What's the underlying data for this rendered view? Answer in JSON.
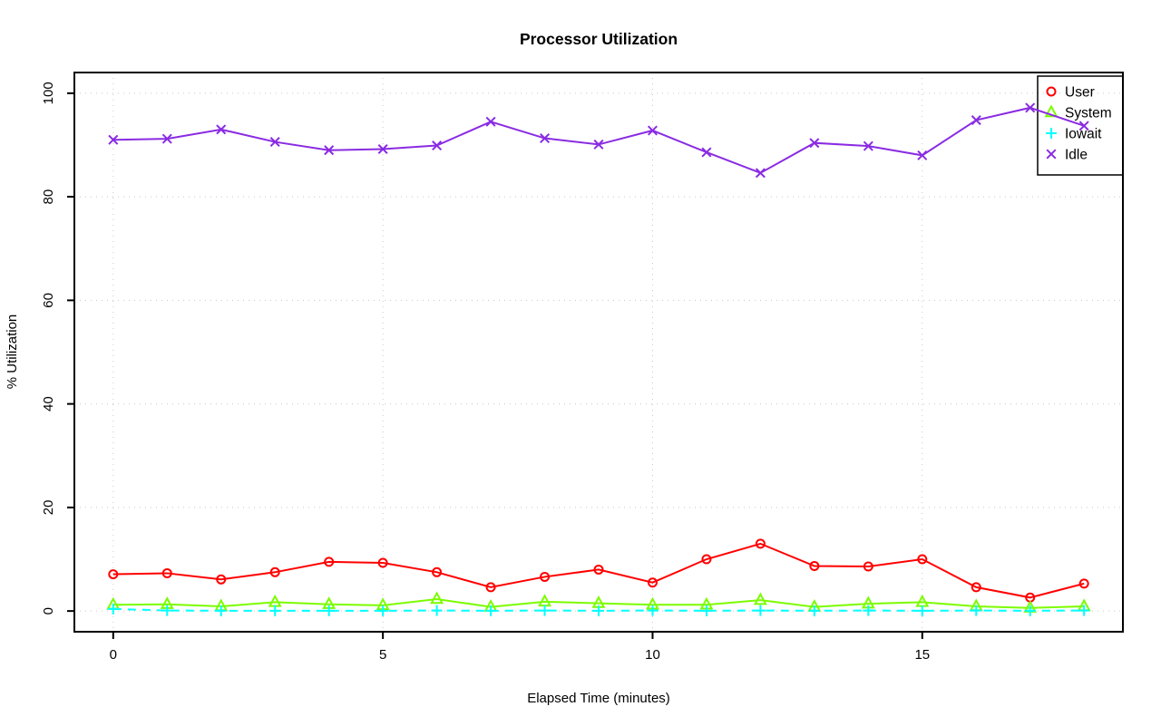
{
  "chart_data": {
    "type": "line",
    "title": "Processor Utilization",
    "xlabel": "Elapsed Time (minutes)",
    "ylabel": "% Utilization",
    "xlim": [
      0,
      18
    ],
    "ylim": [
      0,
      100
    ],
    "xticks": [
      0,
      5,
      10,
      15
    ],
    "yticks": [
      0,
      20,
      40,
      60,
      80,
      100
    ],
    "grid": true,
    "grid_style": "dotted",
    "grid_color": "#c8c8c8",
    "legend_position": "top-right",
    "x": [
      0,
      1,
      2,
      3,
      4,
      5,
      6,
      7,
      8,
      9,
      10,
      11,
      12,
      13,
      14,
      15,
      16,
      17,
      18
    ],
    "series": [
      {
        "name": "User",
        "color": "#ff0000",
        "marker": "circle",
        "line_style": "solid",
        "values": [
          7.1,
          7.3,
          6.1,
          7.5,
          9.5,
          9.3,
          7.5,
          4.6,
          6.6,
          8.0,
          5.5,
          10.0,
          13.0,
          8.7,
          8.6,
          10.0,
          4.6,
          2.6,
          5.3
        ]
      },
      {
        "name": "System",
        "color": "#7cfc00",
        "marker": "triangle",
        "line_style": "solid",
        "values": [
          1.2,
          1.3,
          0.9,
          1.7,
          1.3,
          1.1,
          2.3,
          0.8,
          1.8,
          1.5,
          1.2,
          1.2,
          2.1,
          0.8,
          1.4,
          1.7,
          0.9,
          0.6,
          0.9
        ]
      },
      {
        "name": "Iowait",
        "color": "#00ffff",
        "marker": "plus",
        "line_style": "dashed",
        "values": [
          0.4,
          0.1,
          0.05,
          0.05,
          0.05,
          0.05,
          0.1,
          0.05,
          0.1,
          0.05,
          0.1,
          0.05,
          0.1,
          0.05,
          0.1,
          0.05,
          0.1,
          0.05,
          0.1
        ]
      },
      {
        "name": "Idle",
        "color": "#8a2be2",
        "marker": "x",
        "line_style": "solid",
        "values": [
          91.0,
          91.2,
          93.0,
          90.6,
          89.0,
          89.2,
          89.9,
          94.5,
          91.3,
          90.1,
          92.8,
          88.6,
          84.6,
          90.4,
          89.8,
          88.0,
          94.8,
          97.2,
          93.7
        ]
      }
    ]
  }
}
